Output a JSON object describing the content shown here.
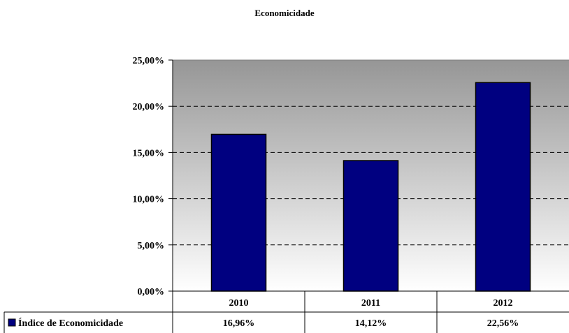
{
  "chart_data": {
    "type": "bar",
    "title": "Economicidade",
    "categories": [
      "2010",
      "2011",
      "2012"
    ],
    "series": [
      {
        "name": "Índice de Economicidade",
        "values": [
          16.96,
          14.12,
          22.56
        ],
        "color": "#000080"
      }
    ],
    "value_labels": [
      "16,96%",
      "14,12%",
      "22,56%"
    ],
    "y_ticks": [
      "0,00%",
      "5,00%",
      "10,00%",
      "15,00%",
      "20,00%",
      "25,00%"
    ],
    "ylim": [
      0,
      25
    ],
    "grid": "dashed horizontal",
    "legend": "data table below chart",
    "colors": {
      "bar": "#000080",
      "plot_top": "#969696",
      "plot_bottom": "#ffffff"
    }
  }
}
